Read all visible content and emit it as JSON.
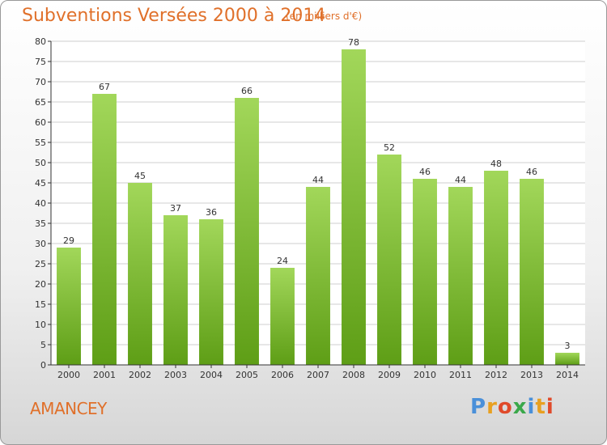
{
  "title": "Subventions Versées 2000 à 2014",
  "unit": "(en milliers d'€)",
  "commune": "AMANCEY",
  "logo": {
    "letters": [
      "P",
      "r",
      "o",
      "x",
      "i",
      "t",
      "i"
    ],
    "colors": [
      "#4a90d9",
      "#e8a020",
      "#e04a2a",
      "#3aa84a",
      "#4a90d9",
      "#e8a020",
      "#e04a2a"
    ]
  },
  "chart_data": {
    "type": "bar",
    "categories": [
      "2000",
      "2001",
      "2002",
      "2003",
      "2004",
      "2005",
      "2006",
      "2007",
      "2008",
      "2009",
      "2010",
      "2011",
      "2012",
      "2013",
      "2014"
    ],
    "values": [
      29,
      67,
      45,
      37,
      36,
      66,
      24,
      44,
      78,
      52,
      46,
      44,
      48,
      46,
      3
    ],
    "title": "Subventions Versées 2000 à 2014",
    "xlabel": "",
    "ylabel": "",
    "ylim": [
      0,
      80
    ],
    "ytick_step": 5,
    "grid": true,
    "bar_color": "#7cc23a"
  }
}
